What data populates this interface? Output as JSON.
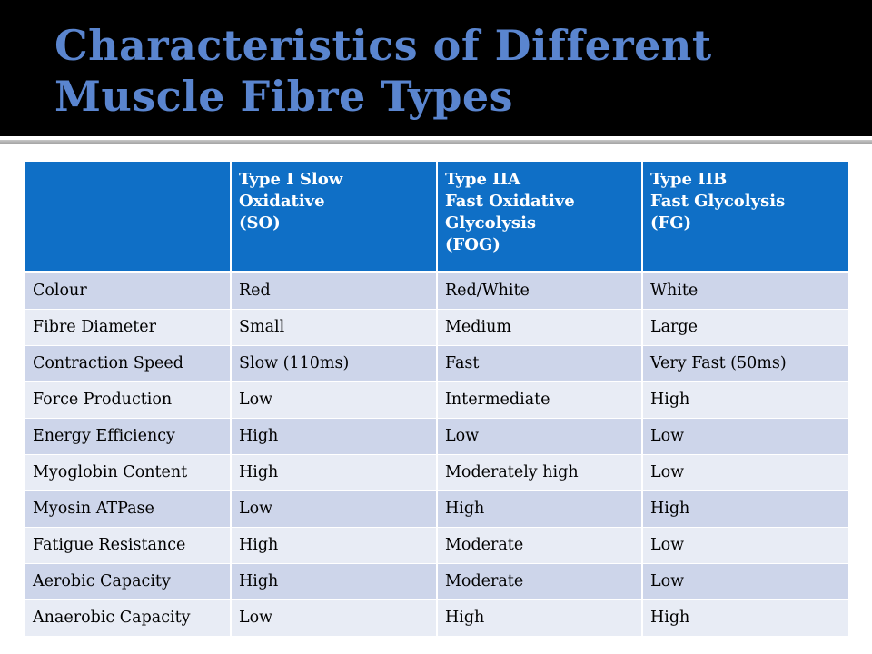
{
  "title": "Characteristics of Different Muscle Fibre Types",
  "colors": {
    "title_band": "#000000",
    "title_text": "#5a85cf",
    "header_bg": "#0f6fc6",
    "row_odd": "#cdd5ea",
    "row_even": "#e8ecf5"
  },
  "table": {
    "headers": [
      [],
      [
        "Type I Slow",
        "Oxidative",
        "(SO)"
      ],
      [
        "Type IIA",
        "Fast Oxidative",
        "Glycolysis",
        "(FOG)"
      ],
      [
        "Type IIB",
        "Fast Glycolysis",
        "(FG)"
      ]
    ],
    "rows": [
      [
        "Colour",
        "Red",
        "Red/White",
        "White"
      ],
      [
        "Fibre Diameter",
        "Small",
        "Medium",
        "Large"
      ],
      [
        "Contraction Speed",
        "Slow (110ms)",
        "Fast",
        "Very Fast (50ms)"
      ],
      [
        "Force Production",
        "Low",
        "Intermediate",
        "High"
      ],
      [
        "Energy Efficiency",
        "High",
        "Low",
        "Low"
      ],
      [
        "Myoglobin Content",
        "High",
        "Moderately high",
        "Low"
      ],
      [
        "Myosin ATPase",
        "Low",
        "High",
        "High"
      ],
      [
        "Fatigue Resistance",
        "High",
        "Moderate",
        "Low"
      ],
      [
        "Aerobic Capacity",
        "High",
        "Moderate",
        "Low"
      ],
      [
        "Anaerobic Capacity",
        "Low",
        "High",
        "High"
      ]
    ]
  }
}
